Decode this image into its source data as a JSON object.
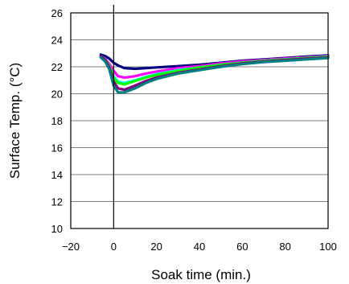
{
  "chart_data": {
    "type": "line",
    "xlabel": "Soak time (min.)",
    "ylabel": "Surface Temp. (°C)",
    "xlim": [
      -20,
      100
    ],
    "ylim": [
      10,
      26
    ],
    "xticks": [
      -20,
      0,
      20,
      40,
      60,
      80,
      100
    ],
    "yticks": [
      10,
      12,
      14,
      16,
      18,
      20,
      22,
      24,
      26
    ],
    "grid": "horizontal",
    "vertical_marker_x": 0,
    "series": [
      {
        "color": "#000080",
        "x": [
          -6,
          -4,
          -2,
          0,
          2,
          5,
          10,
          15,
          20,
          30,
          40,
          50,
          60,
          70,
          80,
          90,
          100
        ],
        "y": [
          22.9,
          22.8,
          22.6,
          22.3,
          22.1,
          21.9,
          21.85,
          21.9,
          21.95,
          22.05,
          22.15,
          22.3,
          22.45,
          22.55,
          22.65,
          22.75,
          22.85
        ]
      },
      {
        "color": "#ff00ff",
        "x": [
          -6,
          -4,
          -2,
          0,
          2,
          5,
          10,
          15,
          20,
          30,
          40,
          50,
          60,
          70,
          80,
          90,
          100
        ],
        "y": [
          22.8,
          22.6,
          22.2,
          21.7,
          21.3,
          21.2,
          21.3,
          21.5,
          21.65,
          21.9,
          22.05,
          22.25,
          22.4,
          22.5,
          22.6,
          22.7,
          22.8
        ]
      },
      {
        "color": "#00ffff",
        "x": [
          -6,
          -4,
          -2,
          0,
          2,
          5,
          10,
          15,
          20,
          30,
          40,
          50,
          60,
          70,
          80,
          90,
          100
        ],
        "y": [
          22.7,
          22.5,
          22.0,
          21.3,
          20.9,
          20.8,
          21.0,
          21.25,
          21.45,
          21.75,
          21.95,
          22.15,
          22.3,
          22.45,
          22.55,
          22.65,
          22.75
        ]
      },
      {
        "color": "#00ff00",
        "x": [
          -6,
          -4,
          -2,
          0,
          2,
          5,
          10,
          15,
          20,
          30,
          40,
          50,
          60,
          70,
          80,
          90,
          100
        ],
        "y": [
          22.8,
          22.55,
          22.05,
          21.2,
          20.8,
          20.7,
          20.95,
          21.2,
          21.4,
          21.7,
          21.95,
          22.15,
          22.3,
          22.45,
          22.55,
          22.65,
          22.75
        ]
      },
      {
        "color": "#800080",
        "x": [
          -6,
          -4,
          -2,
          0,
          2,
          5,
          10,
          15,
          20,
          30,
          40,
          50,
          60,
          70,
          80,
          90,
          100
        ],
        "y": [
          22.8,
          22.5,
          21.95,
          20.9,
          20.4,
          20.3,
          20.6,
          20.95,
          21.2,
          21.55,
          21.8,
          22.05,
          22.25,
          22.4,
          22.5,
          22.6,
          22.7
        ]
      },
      {
        "color": "#008080",
        "x": [
          -6,
          -4,
          -2,
          0,
          2,
          5,
          10,
          15,
          20,
          30,
          40,
          50,
          60,
          70,
          80,
          90,
          100
        ],
        "y": [
          22.7,
          22.4,
          21.8,
          20.6,
          20.1,
          20.1,
          20.4,
          20.8,
          21.1,
          21.5,
          21.75,
          22.0,
          22.2,
          22.35,
          22.45,
          22.55,
          22.65
        ]
      }
    ]
  }
}
